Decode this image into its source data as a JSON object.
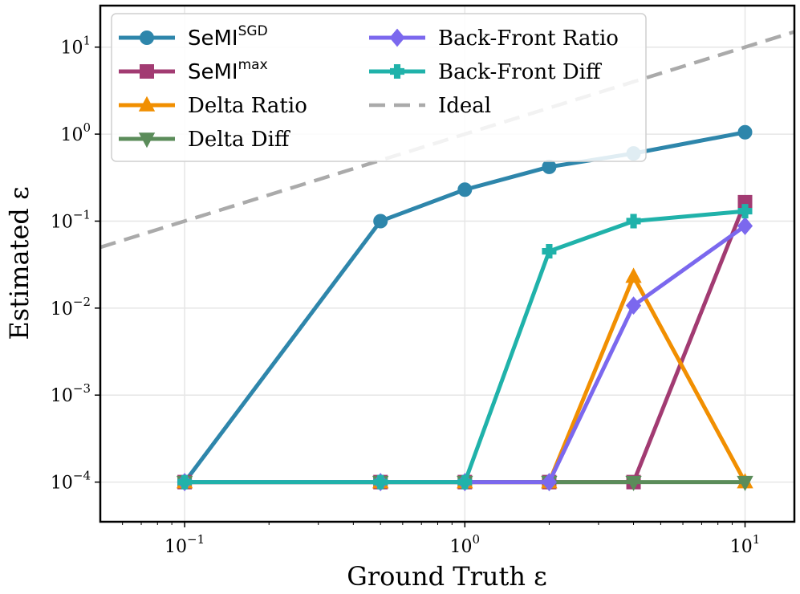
{
  "chart_data": {
    "type": "line",
    "xlabel": "Ground Truth ε",
    "ylabel": "Estimated ε",
    "xscale": "log",
    "yscale": "log",
    "xlim": [
      0.05,
      15
    ],
    "ylim": [
      3.5e-05,
      30
    ],
    "grid": true,
    "legend_position": "top-left",
    "x_ticks": [
      {
        "value": 0.1,
        "base": "10",
        "exp": "−1"
      },
      {
        "value": 1,
        "base": "10",
        "exp": "0"
      },
      {
        "value": 10,
        "base": "10",
        "exp": "1"
      }
    ],
    "y_ticks": [
      {
        "value": 0.0001,
        "base": "10",
        "exp": "−4"
      },
      {
        "value": 0.001,
        "base": "10",
        "exp": "−3"
      },
      {
        "value": 0.01,
        "base": "10",
        "exp": "−2"
      },
      {
        "value": 0.1,
        "base": "10",
        "exp": "−1"
      },
      {
        "value": 1,
        "base": "10",
        "exp": "0"
      },
      {
        "value": 10,
        "base": "10",
        "exp": "1"
      }
    ],
    "series": [
      {
        "name": "SeMI",
        "sup": "SGD",
        "color": "#2E86AB",
        "marker": "circle",
        "x": [
          0.1,
          0.5,
          1,
          2,
          4,
          10
        ],
        "y": [
          0.0001,
          0.1,
          0.23,
          0.42,
          0.6,
          1.05
        ]
      },
      {
        "name": "SeMI",
        "sup": "max",
        "color": "#A23B72",
        "marker": "square",
        "x": [
          0.1,
          0.5,
          1,
          2,
          4,
          10
        ],
        "y": [
          0.0001,
          0.0001,
          0.0001,
          0.0001,
          0.0001,
          0.165
        ]
      },
      {
        "name": "Delta Ratio",
        "color": "#F18F01",
        "marker": "triangle-up",
        "x": [
          0.1,
          0.5,
          1,
          2,
          4,
          10
        ],
        "y": [
          0.0001,
          0.0001,
          0.0001,
          0.0001,
          0.023,
          0.0001
        ]
      },
      {
        "name": "Delta Diff",
        "color": "#5B8C5A",
        "marker": "triangle-down",
        "x": [
          0.1,
          0.5,
          1,
          2,
          4,
          10
        ],
        "y": [
          0.0001,
          0.0001,
          0.0001,
          0.0001,
          0.0001,
          0.0001
        ]
      },
      {
        "name": "Back-Front Ratio",
        "color": "#7B68EE",
        "marker": "diamond",
        "x": [
          0.1,
          0.5,
          1,
          2,
          4,
          10
        ],
        "y": [
          0.0001,
          0.0001,
          0.0001,
          0.0001,
          0.0107,
          0.088
        ]
      },
      {
        "name": "Back-Front Diff",
        "color": "#20B2AA",
        "marker": "plus",
        "x": [
          0.1,
          0.5,
          1,
          2,
          4,
          10
        ],
        "y": [
          0.0001,
          0.0001,
          0.0001,
          0.045,
          0.1,
          0.13
        ]
      },
      {
        "name": "Ideal",
        "color": "#AAAAAA",
        "dashed": true,
        "x": [
          0.05,
          15
        ],
        "y": [
          0.05,
          15
        ]
      }
    ]
  }
}
